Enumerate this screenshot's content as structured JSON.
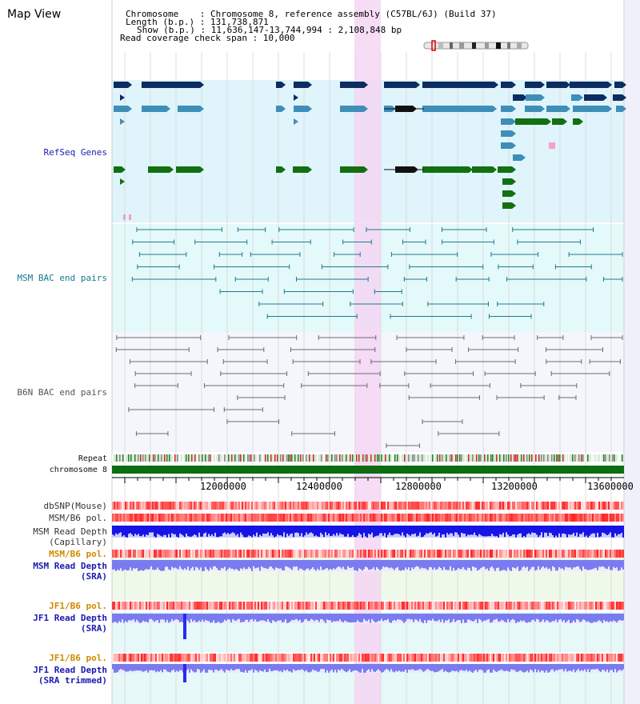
{
  "view_title": "Map View",
  "header": {
    "lines": [
      "Chromosome    : Chromosome 8, reference assembly (C57BL/6J) (Build 37)",
      "Length (b.p.) : 131,738,871",
      "Show (b.p.) : 11,636,147-13,744,994 : 2,108,848 bp",
      "Read coverage check span : 10,000"
    ]
  },
  "tracks": {
    "refseq": "RefSeq Genes",
    "msm_bac": "MSM BAC end pairs",
    "b6n_bac": "B6N BAC end pairs",
    "repeat": "Repeat",
    "chromosome": "chromosome 8",
    "dbsnp": "dbSNP(Mouse)",
    "msm_b6_pol_1": "MSM/B6 pol.",
    "msm_read_depth_cap": "MSM Read Depth",
    "msm_read_depth_cap_sub": "(Capillary)",
    "msm_b6_pol_2": "MSM/B6 pol.",
    "msm_read_depth_sra": "MSM Read Depth",
    "msm_read_depth_sra_sub": "(SRA)",
    "jf1_b6_pol_1": "JF1/B6 pol.",
    "jf1_read_depth_sra": "JF1 Read Depth",
    "jf1_read_depth_sra_sub": "(SRA)",
    "jf1_b6_pol_2": "JF1/B6 pol.",
    "jf1_read_depth_trim": "JF1 Read Depth",
    "jf1_read_depth_trim_sub": "(SRA trimmed)"
  },
  "axis": {
    "ticks": [
      "12000000",
      "12400000",
      "12800000",
      "13200000",
      "13600000"
    ]
  },
  "colors": {
    "refseq_bg": "#dff4fb",
    "msm_bg": "#e4f9f9",
    "b6n_bg": "#f5f6fb",
    "highlight": "#f5d6f3",
    "label_blue": "#1a1ab0",
    "label_teal": "#147a8f",
    "label_gray": "#555555",
    "label_orange": "#d08a00",
    "gene_navy": "#0d2c62",
    "gene_blue": "#3e8fb8",
    "gene_green": "#127012",
    "chrom_green": "#0d6d10",
    "depth_blue": "#1515e6",
    "depth_lav": "#7b7bf0"
  }
}
